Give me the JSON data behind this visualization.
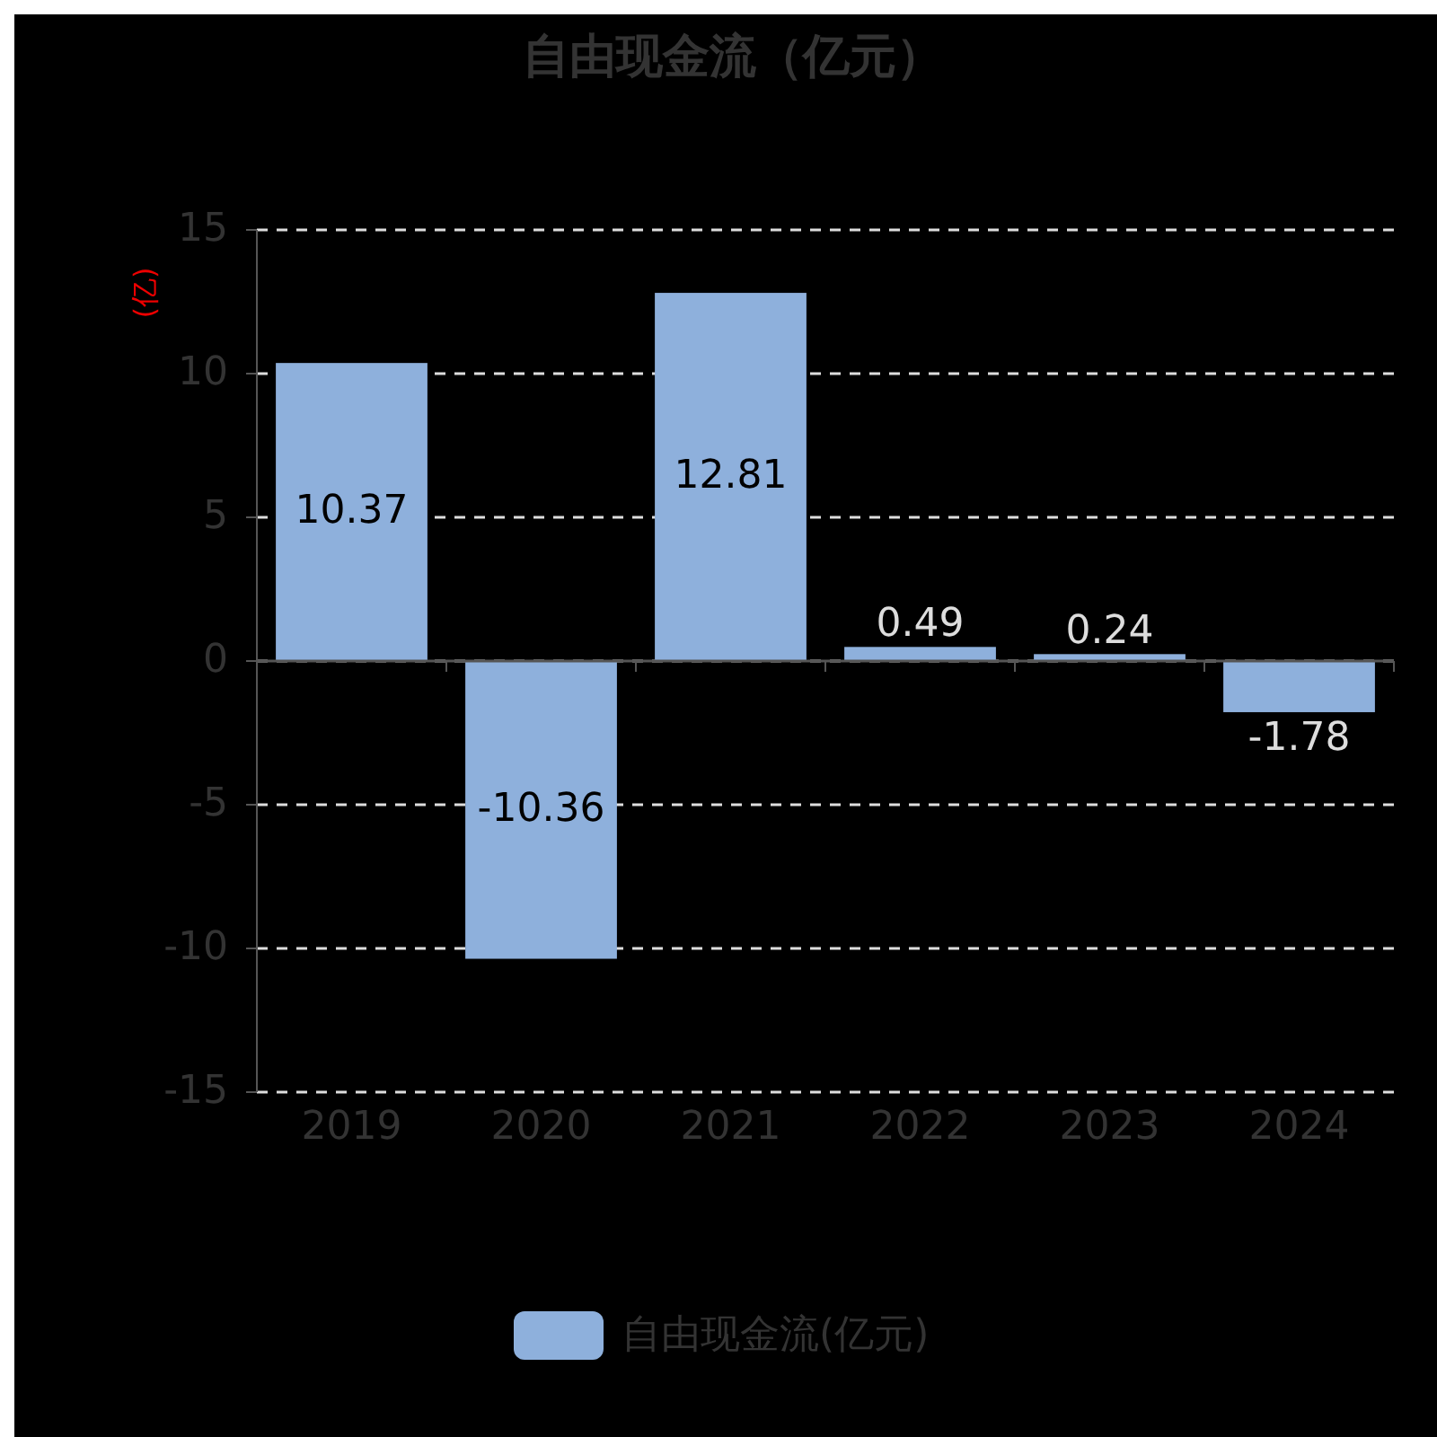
{
  "chart_data": {
    "type": "bar",
    "title": "自由现金流（亿元）",
    "ylabel": "(亿)",
    "categories": [
      "2019",
      "2020",
      "2021",
      "2022",
      "2023",
      "2024"
    ],
    "series": [
      {
        "name": "自由现金流(亿元)",
        "color": "#8eb0dc",
        "values": [
          10.37,
          -10.36,
          12.81,
          0.49,
          0.24,
          -1.78
        ]
      }
    ],
    "ylim": [
      -15,
      15
    ],
    "yticks": [
      -15,
      -10,
      -5,
      0,
      5,
      10,
      15
    ],
    "grid": "y",
    "legend": "bottom",
    "data_labels": true
  }
}
